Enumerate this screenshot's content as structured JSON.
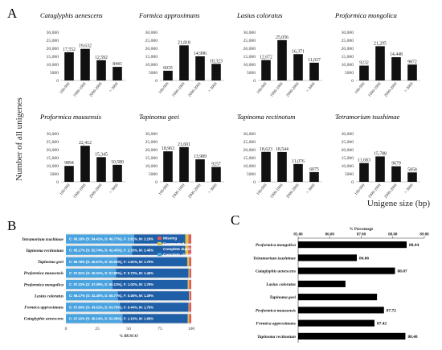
{
  "figure": {
    "panel_a": "A",
    "panel_b": "B",
    "panel_c": "C",
    "panel_a_ylabel": "Number of all unigenes",
    "panel_a_xlabel": "Unigene size (bp)"
  },
  "chart_data": [
    {
      "type": "bar",
      "panel": "A",
      "categories": [
        "100-999",
        "1000-1999",
        "2000-2999",
        "> 3000"
      ],
      "ylim": [
        0,
        30000
      ],
      "yticks": [
        0,
        5000,
        10000,
        15000,
        20000,
        25000,
        30000
      ],
      "ytick_labels": [
        "0",
        "5000",
        "10,000",
        "15,000",
        "20,000",
        "25,000",
        "30,000"
      ],
      "xlabel": "Unigene size (bp)",
      "ylabel": "Number of all unigenes",
      "bar_color": "#111111",
      "panels": [
        {
          "title": "Cataglyphis aenescens",
          "values": [
            17552,
            19632,
            12592,
            8443
          ],
          "labels": [
            "17,552",
            "19,632",
            "12,592",
            "8443"
          ]
        },
        {
          "title": "Formica approximans",
          "values": [
            6035,
            21818,
            14996,
            10323
          ],
          "labels": [
            "6035",
            "21,818",
            "14,996",
            "10,323"
          ]
        },
        {
          "title": "Lasius coloratus",
          "values": [
            12672,
            25056,
            16371,
            11037
          ],
          "labels": [
            "12,672",
            "25,056",
            "16,371",
            "11,037"
          ]
        },
        {
          "title": "Proformica mongolica",
          "values": [
            9232,
            21295,
            14448,
            9872
          ],
          "labels": [
            "9232",
            "21,295",
            "14,448",
            "9872"
          ]
        },
        {
          "title": "Proformica muusensis",
          "values": [
            9894,
            22412,
            15345,
            10580
          ],
          "labels": [
            "9894",
            "22,412",
            "15,345",
            "10,580"
          ]
        },
        {
          "title": "Tapinoma geei",
          "values": [
            18963,
            21601,
            13989,
            9257
          ],
          "labels": [
            "18,963",
            "21,601",
            "13,989",
            "9257"
          ]
        },
        {
          "title": "Tapinoma rectinotum",
          "values": [
            18623,
            18544,
            11076,
            6075
          ],
          "labels": [
            "18,623",
            "18,544",
            "11,076",
            "6075"
          ]
        },
        {
          "title": "Tetramorium tsushimae",
          "values": [
            11683,
            15788,
            9679,
            5858
          ],
          "labels": [
            "11,683",
            "15,788",
            "9679",
            "5858"
          ]
        }
      ]
    },
    {
      "type": "bar",
      "orientation": "horizontal",
      "stacked": true,
      "panel": "B",
      "xlabel": "% BUSCO",
      "xlim": [
        0,
        100
      ],
      "xticks": [
        0,
        25,
        50,
        75,
        100
      ],
      "legend_position": "top-right",
      "categories": [
        "Tetramorium tsushimae",
        "Tapinoma rectinotum",
        "Tapinoma geei",
        "Proformica muusensis",
        "Proformica mongolica",
        "Lasius coloratus",
        "Formica approximans",
        "Cataglyphis aenescens"
      ],
      "series": [
        {
          "name": "Complete single",
          "color": "#4aa3df",
          "values": [
            54.41,
            52.74,
            40.97,
            40.01,
            37.09,
            41.4,
            43.01,
            45.14
          ]
        },
        {
          "name": "Complete duplicated",
          "color": "#1f5fa8",
          "values": [
            40.77,
            42.43,
            55.82,
            57.8,
            60.13,
            56.77,
            54.79,
            52.08
          ]
        },
        {
          "name": "Fragmented",
          "color": "#d9c34a",
          "values": [
            2.61,
            2.33,
            1.51,
            0.73,
            1.02,
            0.46,
            0.44,
            1.1
          ]
        },
        {
          "name": "Missing",
          "color": "#e05a5a",
          "values": [
            2.19,
            2.49,
            1.7,
            1.46,
            1.76,
            1.39,
            1.76,
            1.68
          ]
        }
      ],
      "bar_labels": [
        "C: 95.18% (S: 54.41%, D: 40.77%), F: 2.61%, M: 2.19%",
        "C: 95.17% (S: 52.74%, D: 42.43%), F: 2.33%, M: 2.49%",
        "C: 96.78% (S: 40.97%, D: 55.82%), F: 1.51%, M: 1.70%",
        "C: 97.81% (S: 40.01%, D: 57.80%), F: 0.73%, M: 1.46%",
        "C: 97.22% (S: 37.09%, D: 60.13%), F: 1.02%, M: 1.76%",
        "C: 98.17% (S: 41.40%, D: 56.77%), F: 0.46%, M: 1.39%",
        "C: 97.80% (S: 43.01%, D: 54.79%), F: 0.44%, M: 1.76%",
        "C: 97.22% (S: 45.14%, D: 52.08%), F: 1.10%, M: 1.68%"
      ]
    },
    {
      "type": "bar",
      "orientation": "horizontal",
      "panel": "C",
      "title": "% Percentage",
      "xlim": [
        85,
        89
      ],
      "xticks": [
        85,
        86,
        87,
        88,
        89
      ],
      "xtick_labels": [
        "85.00",
        "86.00",
        "87.00",
        "88.00",
        "89.00"
      ],
      "categories": [
        "Proformica mongolica",
        "Tetramorium tsushimae",
        "Cataglyphis aenescens",
        "Lasius coloratus",
        "Tapinoma geei",
        "Proformica muusensis",
        "Formica approximans",
        "Tapinoma rectinotum"
      ],
      "values": [
        88.44,
        86.86,
        88.07,
        86.5,
        87.5,
        87.72,
        87.42,
        88.4
      ],
      "value_labels": [
        "88.44",
        "86.86",
        "88.07",
        "",
        "",
        "87.72",
        "87.42",
        "88.40"
      ],
      "bar_color": "#000000"
    }
  ]
}
